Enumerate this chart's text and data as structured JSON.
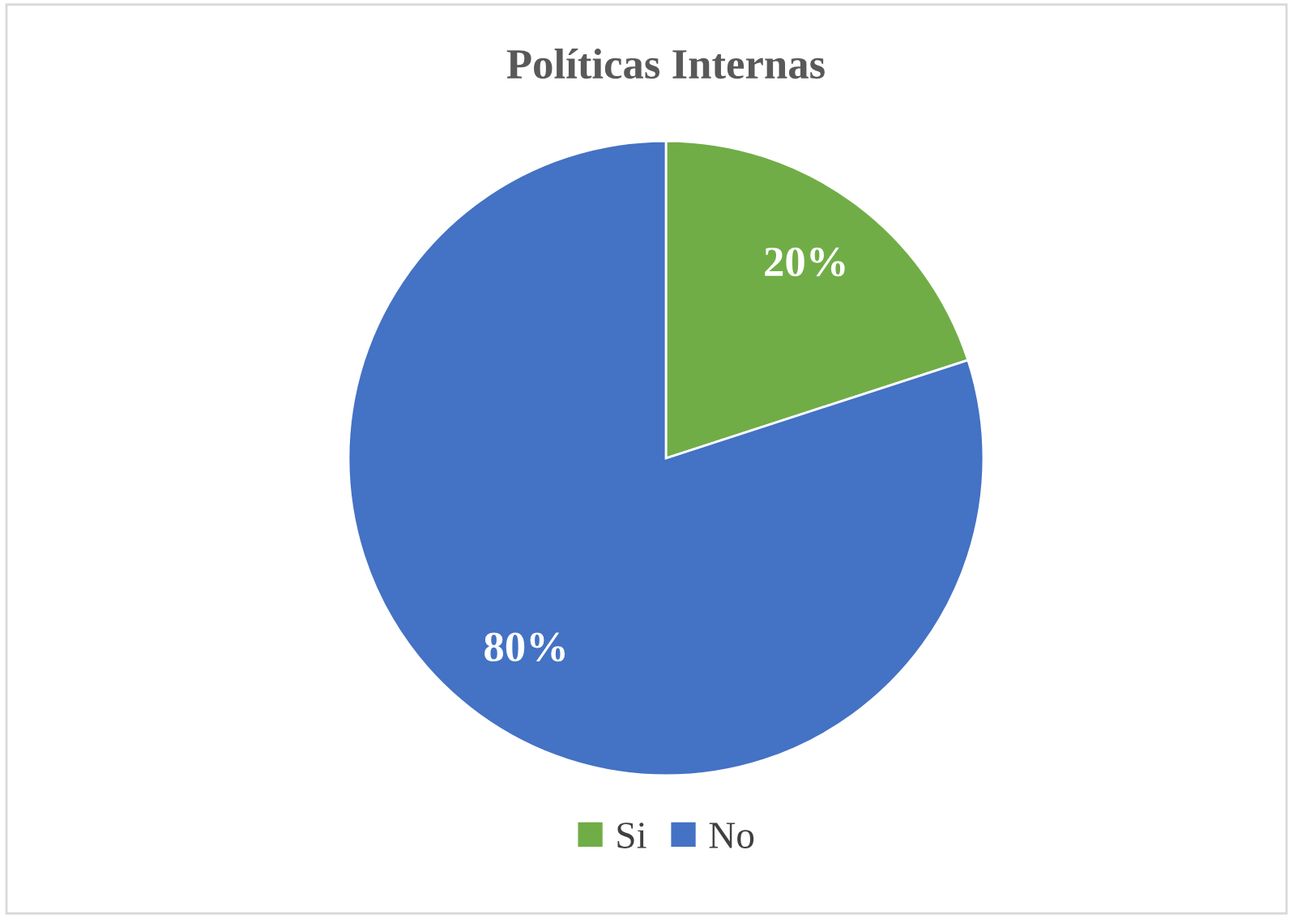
{
  "chart_data": {
    "type": "pie",
    "title": "Políticas Internas",
    "categories": [
      "Si",
      "No"
    ],
    "values": [
      20,
      80
    ],
    "colors": [
      "#70ad47",
      "#4472c4"
    ],
    "value_labels": [
      "20%",
      "80%"
    ],
    "legend": "bottom"
  }
}
